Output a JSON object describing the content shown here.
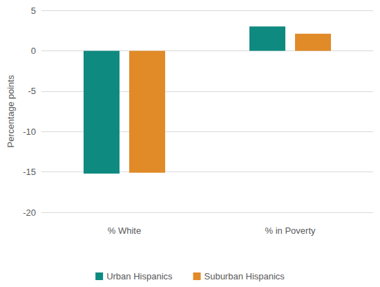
{
  "chart_data": {
    "type": "bar",
    "categories": [
      "% White",
      "% in Poverty"
    ],
    "series": [
      {
        "name": "Urban Hispanics",
        "color": "#0e8a80",
        "values": [
          -15.2,
          3.0
        ]
      },
      {
        "name": "Suburban Hispanics",
        "color": "#e08a28",
        "values": [
          -15.1,
          2.1
        ]
      }
    ],
    "y_label": "Percentage points",
    "ylim": [
      -20,
      5
    ],
    "yticks": [
      -20,
      -15,
      -10,
      -5,
      0,
      5
    ],
    "grid": true,
    "legend": "bottom"
  }
}
